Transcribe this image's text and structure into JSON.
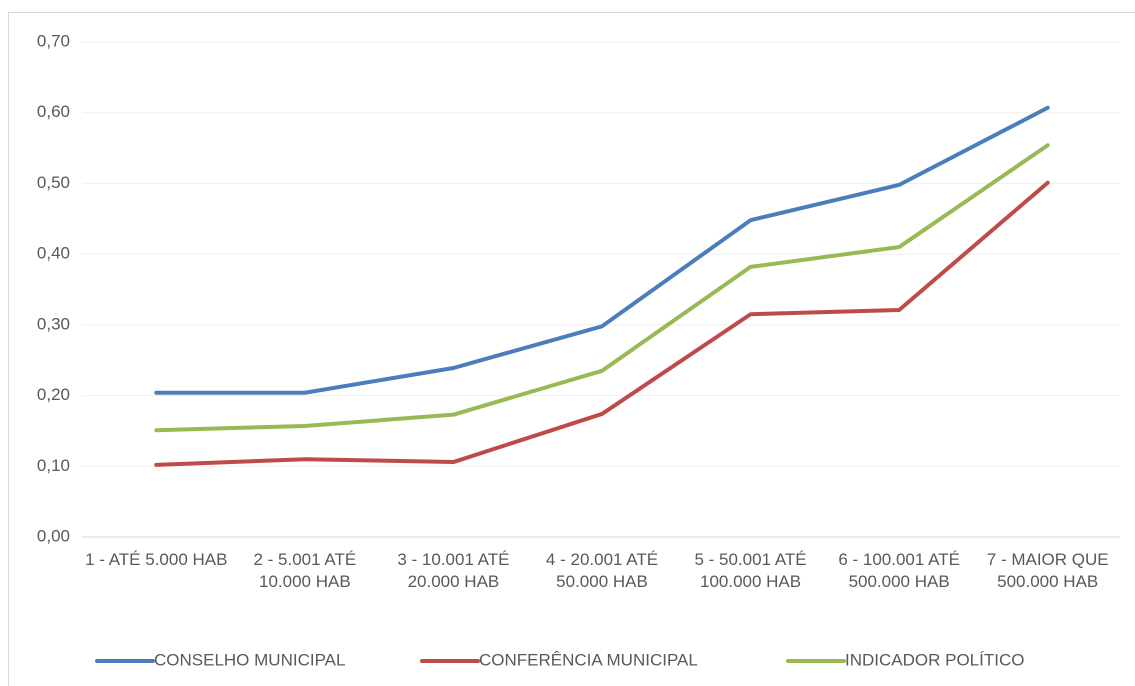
{
  "chart_data": {
    "type": "line",
    "categories": [
      "1 - ATÉ 5.000 HAB",
      "2 - 5.001 ATÉ 10.000 HAB",
      "3 - 10.001 ATÉ 20.000 HAB",
      "4 - 20.001 ATÉ 50.000 HAB",
      "5 - 50.001 ATÉ 100.000 HAB",
      "6 - 100.001 ATÉ 500.000 HAB",
      "7 - MAIOR QUE 500.000 HAB"
    ],
    "series": [
      {
        "name": "CONSELHO MUNICIPAL",
        "color": "#4a7ebb",
        "values": [
          0.204,
          0.204,
          0.239,
          0.298,
          0.448,
          0.498,
          0.607
        ]
      },
      {
        "name": "CONFERÊNCIA MUNICIPAL",
        "color": "#be4b48",
        "values": [
          0.102,
          0.11,
          0.106,
          0.174,
          0.315,
          0.321,
          0.501
        ]
      },
      {
        "name": "INDICADOR POLÍTICO",
        "color": "#98b954",
        "values": [
          0.151,
          0.157,
          0.173,
          0.235,
          0.382,
          0.41,
          0.554
        ]
      }
    ],
    "ylim": [
      0,
      0.7
    ],
    "yticks": [
      {
        "value": 0,
        "label": "0,00"
      },
      {
        "value": 0.1,
        "label": "0,10"
      },
      {
        "value": 0.2,
        "label": "0,20"
      },
      {
        "value": 0.3,
        "label": "0,30"
      },
      {
        "value": 0.4,
        "label": "0,40"
      },
      {
        "value": 0.5,
        "label": "0,50"
      },
      {
        "value": 0.6,
        "label": "0,60"
      },
      {
        "value": 0.7,
        "label": "0,70"
      }
    ],
    "grid": true,
    "legend": "bottom"
  }
}
